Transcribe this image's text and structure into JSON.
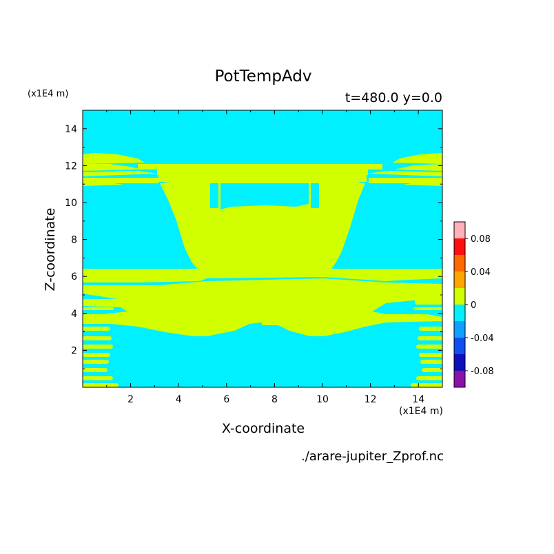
{
  "chart_data": {
    "type": "heatmap",
    "title": "PotTempAdv",
    "subtitle": "t=480.0 y=0.0",
    "xlabel": "X-coordinate",
    "ylabel": "Z-coordinate",
    "x_unit": "(x1E4 m)",
    "y_unit": "(x1E4 m)",
    "xlim": [
      0,
      15
    ],
    "ylim": [
      0,
      15
    ],
    "x_ticks": [
      2,
      4,
      6,
      8,
      10,
      12,
      14
    ],
    "y_ticks": [
      2,
      4,
      6,
      8,
      10,
      12,
      14
    ],
    "source": "./arare-jupiter_Zprof.nc",
    "colorbar": {
      "levels": [
        -0.1,
        -0.08,
        -0.06,
        -0.04,
        -0.02,
        0,
        0.02,
        0.04,
        0.06,
        0.08,
        0.1
      ],
      "colors": [
        "#8a12a8",
        "#1010b8",
        "#1050f0",
        "#10a0ff",
        "#00f0ff",
        "#d2ff00",
        "#ffa500",
        "#ff6a00",
        "#ff1010",
        "#ffb0b8"
      ],
      "tick_labels": [
        "-0.08",
        "-0.04",
        "0",
        "0.04",
        "0.08"
      ],
      "tick_values": [
        -0.08,
        -0.04,
        0,
        0.04,
        0.08
      ]
    },
    "background_value": -0.01,
    "background_color": "#00f0ff",
    "contour_value": 0.01,
    "contour_color": "#d2ff00"
  }
}
